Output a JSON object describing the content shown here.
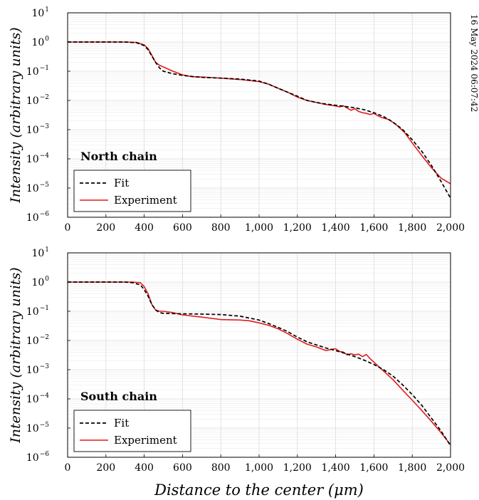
{
  "side_text": "16 May 2024 06:07:42",
  "colors": {
    "fit": "#000000",
    "experiment": "#e31a1c",
    "grid": "#dcdcdc"
  },
  "chart_data": [
    {
      "type": "line",
      "title": "North chain",
      "xlabel": "",
      "ylabel": "Intensity (arbitrary units)",
      "xlim": [
        0,
        2000
      ],
      "ylim": [
        1e-06,
        10
      ],
      "yscale": "log",
      "grid": true,
      "legend_position": "bottom-left",
      "x_ticks": [
        0,
        200,
        400,
        600,
        800,
        1000,
        1200,
        1400,
        1600,
        1800,
        2000
      ],
      "x_tick_labels": [
        "0",
        "200",
        "400",
        "600",
        "800",
        "1,000",
        "1,200",
        "1,400",
        "1,600",
        "1,800",
        "2,000"
      ],
      "y_tick_exponents": [
        "−6",
        "−5",
        "−4",
        "−3",
        "−2",
        "−1",
        "0",
        "1"
      ],
      "series": [
        {
          "name": "Fit",
          "style": "dashed",
          "x": [
            0,
            300,
            360,
            400,
            420,
            440,
            460,
            480,
            500,
            550,
            600,
            650,
            700,
            800,
            900,
            1000,
            1050,
            1100,
            1150,
            1200,
            1250,
            1300,
            1350,
            1400,
            1450,
            1500,
            1550,
            1600,
            1650,
            1700,
            1750,
            1800,
            1850,
            1900,
            1950,
            2000
          ],
          "y": [
            1,
            1,
            0.95,
            0.75,
            0.55,
            0.33,
            0.2,
            0.13,
            0.1,
            0.082,
            0.072,
            0.066,
            0.062,
            0.058,
            0.054,
            0.046,
            0.036,
            0.026,
            0.019,
            0.014,
            0.01,
            0.0085,
            0.0075,
            0.0068,
            0.0062,
            0.0056,
            0.0048,
            0.0038,
            0.0028,
            0.0018,
            0.001,
            0.00045,
            0.00018,
            6e-05,
            1.7e-05,
            4.5e-06
          ]
        },
        {
          "name": "Experiment",
          "style": "solid",
          "x": [
            0,
            300,
            360,
            400,
            420,
            440,
            460,
            480,
            500,
            550,
            600,
            650,
            700,
            800,
            850,
            900,
            950,
            1000,
            1050,
            1100,
            1150,
            1200,
            1250,
            1300,
            1350,
            1400,
            1420,
            1440,
            1460,
            1480,
            1500,
            1520,
            1540,
            1560,
            1580,
            1600,
            1620,
            1640,
            1680,
            1720,
            1760,
            1800,
            1850,
            1900,
            1950,
            2000
          ],
          "y": [
            1,
            1,
            0.97,
            0.8,
            0.6,
            0.35,
            0.2,
            0.16,
            0.14,
            0.1,
            0.075,
            0.065,
            0.063,
            0.058,
            0.055,
            0.052,
            0.048,
            0.044,
            0.036,
            0.026,
            0.019,
            0.013,
            0.01,
            0.0085,
            0.0072,
            0.0065,
            0.006,
            0.0066,
            0.0055,
            0.0046,
            0.0052,
            0.0042,
            0.0038,
            0.0036,
            0.0033,
            0.0036,
            0.003,
            0.0026,
            0.0022,
            0.0014,
            0.0008,
            0.00035,
            0.00013,
            5e-05,
            2.2e-05,
            1.4e-05
          ]
        }
      ]
    },
    {
      "type": "line",
      "title": "South chain",
      "xlabel": "Distance to the center (μm)",
      "ylabel": "Intensity (arbitrary units)",
      "xlim": [
        0,
        2000
      ],
      "ylim": [
        1e-06,
        10
      ],
      "yscale": "log",
      "grid": true,
      "legend_position": "bottom-left",
      "x_ticks": [
        0,
        200,
        400,
        600,
        800,
        1000,
        1200,
        1400,
        1600,
        1800,
        2000
      ],
      "x_tick_labels": [
        "0",
        "200",
        "400",
        "600",
        "800",
        "1,000",
        "1,200",
        "1,400",
        "1,600",
        "1,800",
        "2,000"
      ],
      "y_tick_exponents": [
        "−6",
        "−5",
        "−4",
        "−3",
        "−2",
        "−1",
        "0",
        "1"
      ],
      "series": [
        {
          "name": "Fit",
          "style": "dashed",
          "x": [
            0,
            300,
            340,
            380,
            400,
            420,
            440,
            460,
            480,
            500,
            550,
            600,
            700,
            800,
            900,
            1000,
            1050,
            1100,
            1150,
            1200,
            1250,
            1300,
            1350,
            1400,
            1450,
            1500,
            1550,
            1600,
            1650,
            1700,
            1750,
            1800,
            1850,
            1900,
            1950,
            2000
          ],
          "y": [
            1,
            1,
            0.95,
            0.8,
            0.55,
            0.33,
            0.17,
            0.11,
            0.09,
            0.085,
            0.083,
            0.082,
            0.08,
            0.077,
            0.068,
            0.05,
            0.038,
            0.028,
            0.02,
            0.013,
            0.009,
            0.007,
            0.0055,
            0.0045,
            0.0036,
            0.0028,
            0.0021,
            0.0015,
            0.001,
            0.0006,
            0.0003,
            0.00014,
            6e-05,
            2.2e-05,
            8e-06,
            2.5e-06
          ]
        },
        {
          "name": "Experiment",
          "style": "solid",
          "x": [
            0,
            300,
            340,
            380,
            400,
            420,
            440,
            460,
            480,
            500,
            550,
            600,
            700,
            800,
            900,
            950,
            1000,
            1050,
            1100,
            1150,
            1200,
            1250,
            1300,
            1350,
            1380,
            1400,
            1420,
            1440,
            1460,
            1480,
            1500,
            1520,
            1540,
            1560,
            1580,
            1600,
            1650,
            1700,
            1750,
            1800,
            1850,
            1900,
            1950,
            2000
          ],
          "y": [
            1,
            1,
            1,
            0.95,
            0.7,
            0.4,
            0.17,
            0.11,
            0.1,
            0.1,
            0.09,
            0.075,
            0.063,
            0.052,
            0.05,
            0.047,
            0.04,
            0.033,
            0.025,
            0.017,
            0.011,
            0.0075,
            0.006,
            0.0045,
            0.005,
            0.0052,
            0.0042,
            0.004,
            0.0032,
            0.0035,
            0.0032,
            0.0034,
            0.0028,
            0.0033,
            0.0024,
            0.0018,
            0.0009,
            0.00045,
            0.0002,
            9e-05,
            4e-05,
            1.7e-05,
            7e-06,
            2.7e-06
          ]
        }
      ]
    }
  ]
}
